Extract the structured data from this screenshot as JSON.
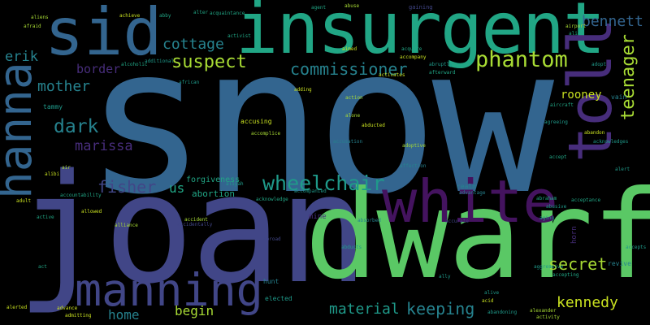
{
  "words": {
    "snow": "snow",
    "joan": "joan",
    "dwarf": "dwarf",
    "insurgent": "insurgent",
    "white": "white",
    "sid": "sid",
    "hanna": "hanna",
    "toll": "toll",
    "manning": "manning",
    "phantom": "phantom",
    "wheelchair": "wheelchair",
    "teenager": "teenager",
    "suspect": "suspect",
    "commissioner": "commissioner",
    "dark": "dark",
    "mother": "mother",
    "fisher": "fisher",
    "cottage": "cottage",
    "bennett": "bennett",
    "secret": "secret",
    "kennedy": "kennedy",
    "keeping": "keeping",
    "material": "material",
    "marissa": "marissa",
    "erik": "erik",
    "border": "border",
    "home": "home",
    "begin": "begin",
    "rooney": "rooney",
    "us": "us",
    "abortion": "abortion",
    "forgiveness": "forgiveness",
    "tammy": "tammy",
    "vain": "vain",
    "revive": "revive",
    "accusing": "accusing",
    "mine": "mine",
    "realm": "realm",
    "hunt": "hunt",
    "elected": "elected",
    "horn": "horn",
    "abroad": "abroad",
    "accompanied": "accompanied",
    "affection": "affection",
    "adoptive": "adoptive",
    "abducted": "abducted",
    "acknowledge": "acknowledge",
    "abuse": "abuse",
    "gaining": "gaining",
    "acquaintance": "acquaintance",
    "accompany": "accompany",
    "activist": "activist",
    "airport": "airport",
    "alien": "alien",
    "aircraft": "aircraft",
    "alcoholic": "alcoholic",
    "advance": "advance",
    "acid": "acid",
    "abandoning": "abandoning",
    "activity": "activity",
    "accepts": "accepts",
    "acceptance": "acceptance",
    "acquire": "acquire",
    "alibi": "alibi",
    "act": "act",
    "aliens": "aliens",
    "accepting": "accepting",
    "alliance": "alliance",
    "accountability": "accountability",
    "adult": "adult",
    "air": "air",
    "active": "active",
    "alerted": "alerted",
    "action": "action",
    "aimed": "aimed",
    "admitting": "admitting",
    "achieve": "achieve",
    "activates": "activates",
    "adding": "adding",
    "abraham": "abraham",
    "agreeing": "agreeing",
    "abandon": "abandon",
    "accidentally": "accidentally",
    "additional": "additional",
    "aging": "aging",
    "abusive": "abusive",
    "afterward": "afterward",
    "absorbed": "absorbed",
    "african": "african",
    "advantage": "advantage",
    "accusation": "accusation",
    "abruptly": "abruptly",
    "agent": "agent",
    "alter": "alter",
    "alone": "alone",
    "abducts": "abducts",
    "adopt": "adopt",
    "afraid": "afraid",
    "aliyah": "aliyah",
    "accomplice": "accomplice",
    "acknowledges": "acknowledges",
    "allowed": "allowed",
    "accurate": "accurate",
    "aggressive": "aggressive",
    "alexander": "alexander",
    "accept": "accept",
    "ally": "ally",
    "abby": "abby",
    "alert": "alert",
    "accident": "accident",
    "alive": "alive"
  },
  "colors": {
    "background": "#000000",
    "blue": "#33658f",
    "indigo": "#414687",
    "green": "#5ac865",
    "teal": "#21a685",
    "tealmid": "#1f9a8a",
    "seafoam": "#26828e",
    "purple": "#472d7b",
    "deep": "#44135f",
    "lime": "#a8db34",
    "yellow": "#c8e020"
  }
}
